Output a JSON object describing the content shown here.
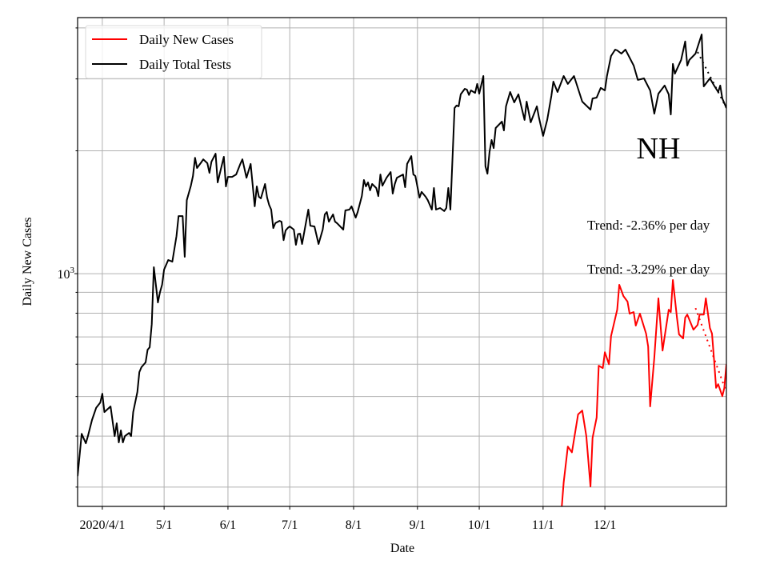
{
  "chart_data": {
    "type": "line",
    "title": "",
    "annotation_label": "NH",
    "xlabel": "Date",
    "ylabel": "Daily New Cases",
    "yscale": "log",
    "ylim": [
      269,
      4240
    ],
    "xlim": [
      "2020-03-20",
      "2021-01-29"
    ],
    "grid": true,
    "legend_position": "top-left",
    "x_ticks": [
      {
        "date": "2020-04-01",
        "label": "2020/4/1"
      },
      {
        "date": "2020-05-01",
        "label": "5/1"
      },
      {
        "date": "2020-06-01",
        "label": "6/1"
      },
      {
        "date": "2020-07-01",
        "label": "7/1"
      },
      {
        "date": "2020-08-01",
        "label": "8/1"
      },
      {
        "date": "2020-09-01",
        "label": "9/1"
      },
      {
        "date": "2020-10-01",
        "label": "10/1"
      },
      {
        "date": "2020-11-01",
        "label": "11/1"
      },
      {
        "date": "2020-12-01",
        "label": "12/1"
      }
    ],
    "y_major_tick": {
      "value": 1000,
      "label_base": "10",
      "label_exp": "3"
    },
    "y_minor_ticks": [
      300,
      400,
      500,
      600,
      700,
      800,
      900,
      2000,
      3000,
      4000
    ],
    "annotations": [
      {
        "text": "Trend: -2.36% per day"
      },
      {
        "text": "Trend: -3.29% per day"
      }
    ],
    "series": [
      {
        "name": "Daily New Cases",
        "color": "#ff0000",
        "points": [
          [
            "2020-11-10",
            265
          ],
          [
            "2020-11-11",
            308
          ],
          [
            "2020-11-13",
            377
          ],
          [
            "2020-11-15",
            365
          ],
          [
            "2020-11-18",
            452
          ],
          [
            "2020-11-20",
            462
          ],
          [
            "2020-11-22",
            400
          ],
          [
            "2020-11-24",
            301
          ],
          [
            "2020-11-25",
            396
          ],
          [
            "2020-11-27",
            444
          ],
          [
            "2020-11-28",
            595
          ],
          [
            "2020-11-30",
            587
          ],
          [
            "2020-12-01",
            642
          ],
          [
            "2020-12-03",
            600
          ],
          [
            "2020-12-04",
            703
          ],
          [
            "2020-12-07",
            816
          ],
          [
            "2020-12-08",
            939
          ],
          [
            "2020-12-10",
            881
          ],
          [
            "2020-12-12",
            854
          ],
          [
            "2020-12-13",
            798
          ],
          [
            "2020-12-15",
            805
          ],
          [
            "2020-12-16",
            746
          ],
          [
            "2020-12-18",
            798
          ],
          [
            "2020-12-21",
            713
          ],
          [
            "2020-12-22",
            663
          ],
          [
            "2020-12-23",
            473
          ],
          [
            "2020-12-25",
            623
          ],
          [
            "2020-12-27",
            870
          ],
          [
            "2020-12-29",
            648
          ],
          [
            "2021-01-01",
            816
          ],
          [
            "2021-01-02",
            805
          ],
          [
            "2021-01-03",
            965
          ],
          [
            "2021-01-05",
            780
          ],
          [
            "2021-01-06",
            710
          ],
          [
            "2021-01-08",
            694
          ],
          [
            "2021-01-09",
            780
          ],
          [
            "2021-01-10",
            794
          ],
          [
            "2021-01-13",
            729
          ],
          [
            "2021-01-15",
            749
          ],
          [
            "2021-01-16",
            794
          ],
          [
            "2021-01-18",
            794
          ],
          [
            "2021-01-19",
            870
          ],
          [
            "2021-01-21",
            736
          ],
          [
            "2021-01-22",
            713
          ],
          [
            "2021-01-23",
            614
          ],
          [
            "2021-01-24",
            525
          ],
          [
            "2021-01-25",
            536
          ],
          [
            "2021-01-27",
            501
          ],
          [
            "2021-01-28",
            525
          ],
          [
            "2021-01-29",
            600
          ]
        ],
        "trend": [
          [
            "2021-01-14",
            823
          ],
          [
            "2021-01-29",
            513
          ]
        ]
      },
      {
        "name": "Daily Total Tests",
        "color": "#000000",
        "points": [
          [
            "2020-03-20",
            319
          ],
          [
            "2020-03-22",
            405
          ],
          [
            "2020-03-24",
            384
          ],
          [
            "2020-03-25",
            400
          ],
          [
            "2020-03-27",
            438
          ],
          [
            "2020-03-29",
            469
          ],
          [
            "2020-03-31",
            483
          ],
          [
            "2020-04-01",
            508
          ],
          [
            "2020-04-02",
            458
          ],
          [
            "2020-04-05",
            473
          ],
          [
            "2020-04-07",
            400
          ],
          [
            "2020-04-08",
            430
          ],
          [
            "2020-04-09",
            386
          ],
          [
            "2020-04-10",
            413
          ],
          [
            "2020-04-11",
            386
          ],
          [
            "2020-04-12",
            400
          ],
          [
            "2020-04-14",
            407
          ],
          [
            "2020-04-15",
            400
          ],
          [
            "2020-04-16",
            458
          ],
          [
            "2020-04-18",
            513
          ],
          [
            "2020-04-19",
            574
          ],
          [
            "2020-04-20",
            590
          ],
          [
            "2020-04-22",
            606
          ],
          [
            "2020-04-23",
            651
          ],
          [
            "2020-04-24",
            660
          ],
          [
            "2020-04-25",
            752
          ],
          [
            "2020-04-26",
            1037
          ],
          [
            "2020-04-28",
            850
          ],
          [
            "2020-04-29",
            901
          ],
          [
            "2020-04-30",
            939
          ],
          [
            "2020-05-01",
            1023
          ],
          [
            "2020-05-03",
            1080
          ],
          [
            "2020-05-05",
            1070
          ],
          [
            "2020-05-07",
            1236
          ],
          [
            "2020-05-08",
            1384
          ],
          [
            "2020-05-10",
            1384
          ],
          [
            "2020-05-11",
            1100
          ],
          [
            "2020-05-12",
            1514
          ],
          [
            "2020-05-14",
            1643
          ],
          [
            "2020-05-15",
            1735
          ],
          [
            "2020-05-16",
            1923
          ],
          [
            "2020-05-17",
            1815
          ],
          [
            "2020-05-19",
            1873
          ],
          [
            "2020-05-20",
            1906
          ],
          [
            "2020-05-22",
            1865
          ],
          [
            "2020-05-23",
            1766
          ],
          [
            "2020-05-24",
            1880
          ],
          [
            "2020-05-26",
            1968
          ],
          [
            "2020-05-27",
            1673
          ],
          [
            "2020-05-30",
            1933
          ],
          [
            "2020-05-31",
            1636
          ],
          [
            "2020-06-01",
            1726
          ],
          [
            "2020-06-03",
            1726
          ],
          [
            "2020-06-05",
            1750
          ],
          [
            "2020-06-07",
            1857
          ],
          [
            "2020-06-08",
            1906
          ],
          [
            "2020-06-10",
            1718
          ],
          [
            "2020-06-12",
            1857
          ],
          [
            "2020-06-14",
            1462
          ],
          [
            "2020-06-15",
            1636
          ],
          [
            "2020-06-16",
            1543
          ],
          [
            "2020-06-17",
            1529
          ],
          [
            "2020-06-19",
            1658
          ],
          [
            "2020-06-20",
            1536
          ],
          [
            "2020-06-21",
            1474
          ],
          [
            "2020-06-22",
            1435
          ],
          [
            "2020-06-23",
            1293
          ],
          [
            "2020-06-24",
            1330
          ],
          [
            "2020-06-26",
            1347
          ],
          [
            "2020-06-27",
            1340
          ],
          [
            "2020-06-28",
            1208
          ],
          [
            "2020-06-29",
            1276
          ],
          [
            "2020-06-30",
            1293
          ],
          [
            "2020-07-01",
            1305
          ],
          [
            "2020-07-03",
            1282
          ],
          [
            "2020-07-04",
            1177
          ],
          [
            "2020-07-05",
            1250
          ],
          [
            "2020-07-06",
            1253
          ],
          [
            "2020-07-07",
            1182
          ],
          [
            "2020-07-10",
            1435
          ],
          [
            "2020-07-11",
            1311
          ],
          [
            "2020-07-13",
            1305
          ],
          [
            "2020-07-15",
            1182
          ],
          [
            "2020-07-17",
            1282
          ],
          [
            "2020-07-18",
            1397
          ],
          [
            "2020-07-19",
            1416
          ],
          [
            "2020-07-20",
            1341
          ],
          [
            "2020-07-22",
            1397
          ],
          [
            "2020-07-23",
            1341
          ],
          [
            "2020-07-24",
            1329
          ],
          [
            "2020-07-27",
            1282
          ],
          [
            "2020-07-28",
            1429
          ],
          [
            "2020-07-30",
            1435
          ],
          [
            "2020-07-31",
            1462
          ],
          [
            "2020-08-02",
            1372
          ],
          [
            "2020-08-03",
            1416
          ],
          [
            "2020-08-05",
            1549
          ],
          [
            "2020-08-06",
            1696
          ],
          [
            "2020-08-07",
            1636
          ],
          [
            "2020-08-08",
            1673
          ],
          [
            "2020-08-09",
            1600
          ],
          [
            "2020-08-10",
            1658
          ],
          [
            "2020-08-12",
            1621
          ],
          [
            "2020-08-13",
            1549
          ],
          [
            "2020-08-14",
            1750
          ],
          [
            "2020-08-15",
            1643
          ],
          [
            "2020-08-17",
            1718
          ],
          [
            "2020-08-19",
            1774
          ],
          [
            "2020-08-20",
            1571
          ],
          [
            "2020-08-21",
            1658
          ],
          [
            "2020-08-22",
            1718
          ],
          [
            "2020-08-25",
            1750
          ],
          [
            "2020-08-26",
            1629
          ],
          [
            "2020-08-27",
            1857
          ],
          [
            "2020-08-29",
            1941
          ],
          [
            "2020-08-30",
            1750
          ],
          [
            "2020-08-31",
            1735
          ],
          [
            "2020-09-02",
            1536
          ],
          [
            "2020-09-03",
            1586
          ],
          [
            "2020-09-05",
            1543
          ],
          [
            "2020-09-06",
            1514
          ],
          [
            "2020-09-08",
            1435
          ],
          [
            "2020-09-09",
            1621
          ],
          [
            "2020-09-10",
            1435
          ],
          [
            "2020-09-12",
            1448
          ],
          [
            "2020-09-14",
            1424
          ],
          [
            "2020-09-15",
            1448
          ],
          [
            "2020-09-16",
            1621
          ],
          [
            "2020-09-17",
            1435
          ],
          [
            "2020-09-19",
            2546
          ],
          [
            "2020-09-20",
            2582
          ],
          [
            "2020-09-21",
            2570
          ],
          [
            "2020-09-22",
            2750
          ],
          [
            "2020-09-24",
            2838
          ],
          [
            "2020-09-25",
            2825
          ],
          [
            "2020-09-26",
            2740
          ],
          [
            "2020-09-27",
            2812
          ],
          [
            "2020-09-29",
            2773
          ],
          [
            "2020-09-30",
            2917
          ],
          [
            "2020-10-01",
            2760
          ],
          [
            "2020-10-03",
            3050
          ],
          [
            "2020-10-04",
            1832
          ],
          [
            "2020-10-05",
            1758
          ],
          [
            "2020-10-06",
            1986
          ],
          [
            "2020-10-07",
            2126
          ],
          [
            "2020-10-08",
            2031
          ],
          [
            "2020-10-09",
            2274
          ],
          [
            "2020-10-12",
            2358
          ],
          [
            "2020-10-13",
            2244
          ],
          [
            "2020-10-14",
            2570
          ],
          [
            "2020-10-16",
            2786
          ],
          [
            "2020-10-18",
            2628
          ],
          [
            "2020-10-20",
            2750
          ],
          [
            "2020-10-23",
            2380
          ],
          [
            "2020-10-24",
            2640
          ],
          [
            "2020-10-26",
            2348
          ],
          [
            "2020-10-29",
            2570
          ],
          [
            "2020-10-30",
            2412
          ],
          [
            "2020-11-01",
            2175
          ],
          [
            "2020-11-03",
            2380
          ],
          [
            "2020-11-05",
            2725
          ],
          [
            "2020-11-06",
            2955
          ],
          [
            "2020-11-08",
            2786
          ],
          [
            "2020-11-11",
            3050
          ],
          [
            "2020-11-13",
            2917
          ],
          [
            "2020-11-16",
            3050
          ],
          [
            "2020-11-20",
            2640
          ],
          [
            "2020-11-24",
            2523
          ],
          [
            "2020-11-25",
            2687
          ],
          [
            "2020-11-27",
            2700
          ],
          [
            "2020-11-29",
            2851
          ],
          [
            "2020-12-01",
            2812
          ],
          [
            "2020-12-02",
            3050
          ],
          [
            "2020-12-04",
            3414
          ],
          [
            "2020-12-06",
            3540
          ],
          [
            "2020-12-07",
            3524
          ],
          [
            "2020-12-09",
            3461
          ],
          [
            "2020-12-11",
            3540
          ],
          [
            "2020-12-15",
            3236
          ],
          [
            "2020-12-17",
            2983
          ],
          [
            "2020-12-20",
            3009
          ],
          [
            "2020-12-23",
            2810
          ],
          [
            "2020-12-25",
            2466
          ],
          [
            "2020-12-27",
            2760
          ],
          [
            "2020-12-30",
            2890
          ],
          [
            "2021-01-01",
            2750
          ],
          [
            "2021-01-02",
            2455
          ],
          [
            "2021-01-03",
            3265
          ],
          [
            "2021-01-04",
            3090
          ],
          [
            "2021-01-07",
            3339
          ],
          [
            "2021-01-09",
            3706
          ],
          [
            "2021-01-10",
            3236
          ],
          [
            "2021-01-11",
            3339
          ],
          [
            "2021-01-14",
            3461
          ],
          [
            "2021-01-17",
            3855
          ],
          [
            "2021-01-18",
            2876
          ],
          [
            "2021-01-21",
            3009
          ],
          [
            "2021-01-23",
            2890
          ],
          [
            "2021-01-25",
            2786
          ],
          [
            "2021-01-26",
            2890
          ],
          [
            "2021-01-27",
            2687
          ],
          [
            "2021-01-29",
            2546
          ]
        ],
        "trend": [
          [
            "2021-01-15",
            3492
          ],
          [
            "2021-01-29",
            2546
          ]
        ]
      }
    ]
  }
}
